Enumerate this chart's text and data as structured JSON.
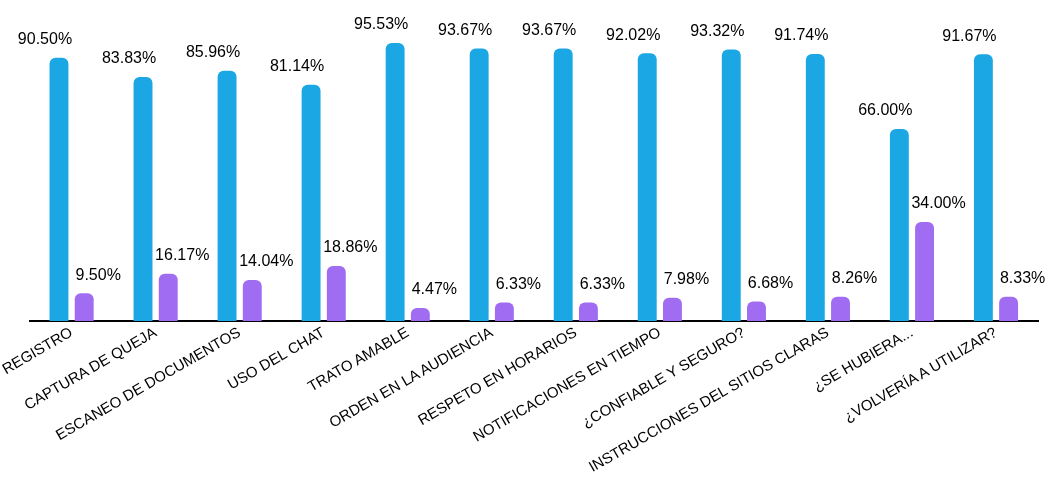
{
  "chart_data": {
    "type": "bar",
    "categories": [
      "REGISTRO",
      "CAPTURA DE QUEJA",
      "ESCANEO DE DOCUMENTOS",
      "USO DEL CHAT",
      "TRATO AMABLE",
      "ORDEN EN LA AUDIENCIA",
      "RESPETO EN HORARIOS",
      "NOTIFICACIONES EN TIEMPO",
      "¿CONFIABLE Y SEGURO?",
      "INSTRUCCIONES DEL SITIOS CLARAS",
      "¿SE HUBIERA...",
      "¿VOLVERÍA A UTILIZAR?"
    ],
    "series": [
      {
        "color": "#1aa7e3",
        "values": [
          90.5,
          83.83,
          85.96,
          81.14,
          95.53,
          93.67,
          93.67,
          92.02,
          93.32,
          91.74,
          66.0,
          91.67
        ],
        "value_labels": [
          "90.50%",
          "83.83%",
          "85.96%",
          "81.14%",
          "95.53%",
          "93.67%",
          "93.67%",
          "92.02%",
          "93.32%",
          "91.74%",
          "66.00%",
          "91.67%"
        ]
      },
      {
        "color": "#9f6cf2",
        "values": [
          9.5,
          16.17,
          14.04,
          18.86,
          4.47,
          6.33,
          6.33,
          7.98,
          6.68,
          8.26,
          34.0,
          8.33
        ],
        "value_labels": [
          "9.50%",
          "16.17%",
          "14.04%",
          "18.86%",
          "4.47%",
          "6.33%",
          "6.33%",
          "7.98%",
          "6.68%",
          "8.26%",
          "34.00%",
          "8.33%"
        ]
      }
    ],
    "grid": false,
    "legend": false,
    "tick_labels": "x"
  }
}
